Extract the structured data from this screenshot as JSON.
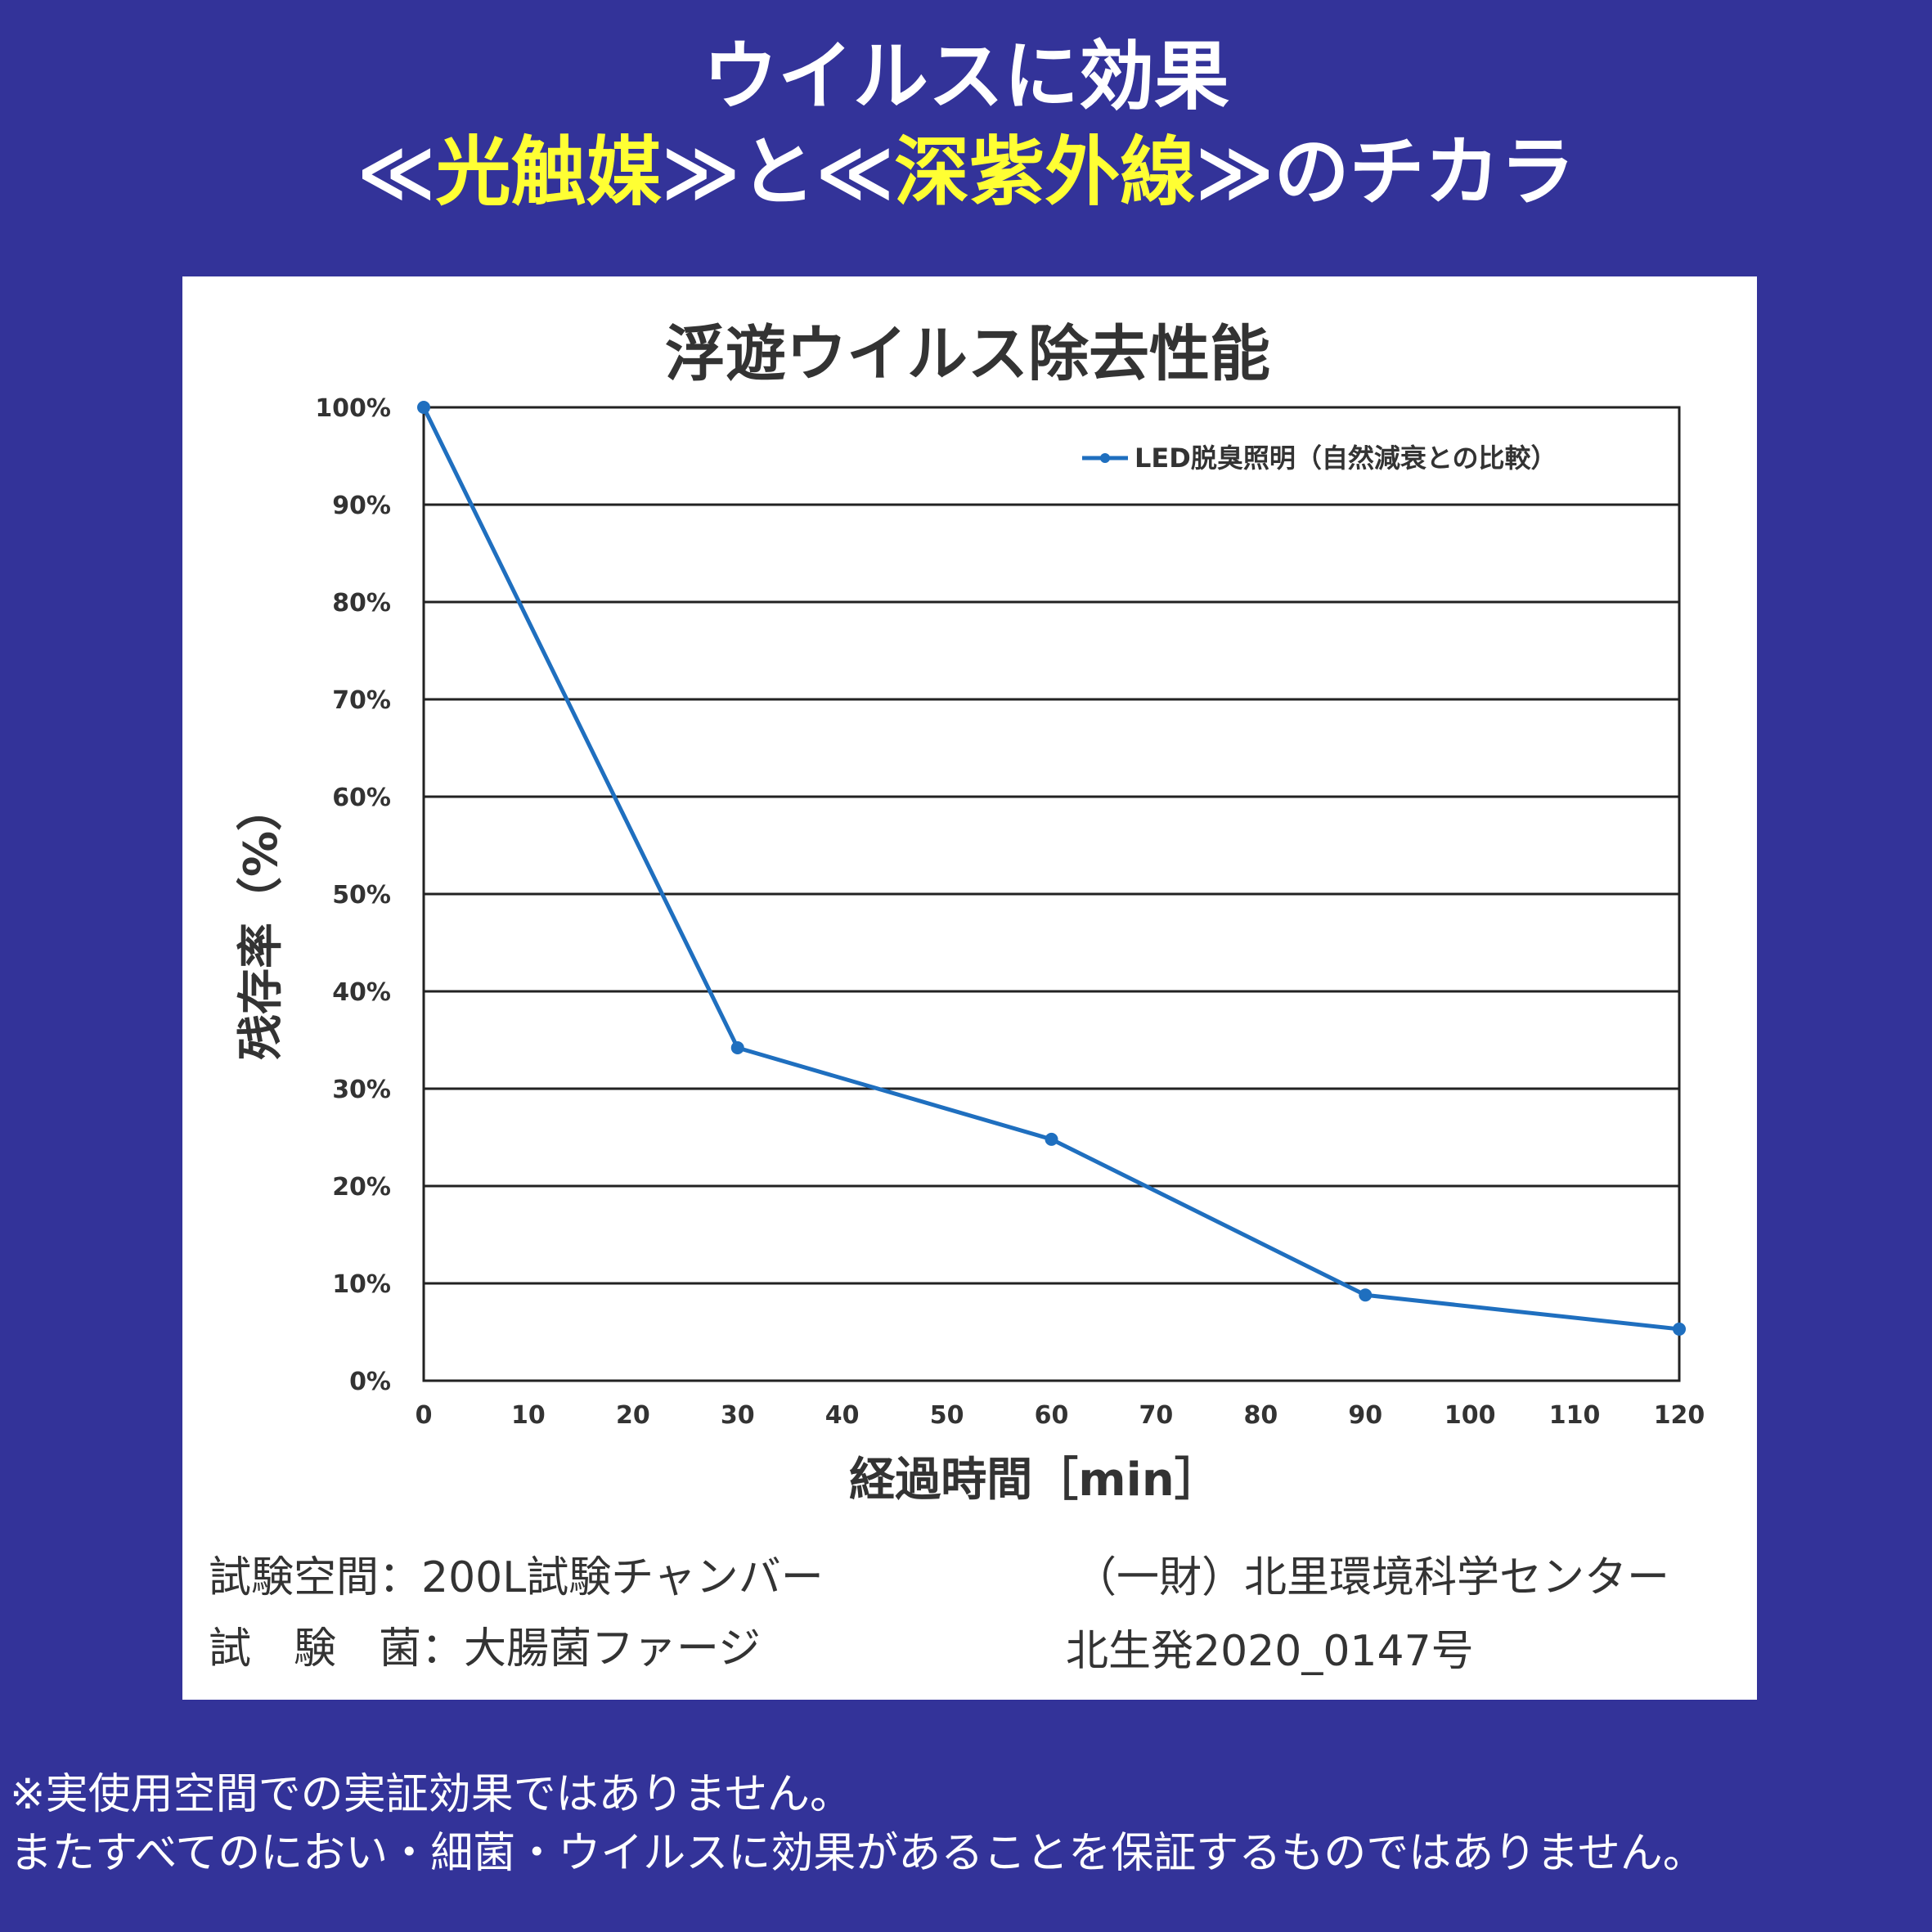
{
  "header": {
    "line1": "ウイルスに効果",
    "line2_parts": [
      "≪",
      "光触媒",
      "≫と≪",
      "深紫外線",
      "≫のチカラ"
    ]
  },
  "colors": {
    "background": "#333399",
    "highlight": "#ffff33",
    "series": "#1f6fbf"
  },
  "chart_data": {
    "type": "line",
    "title": "浮遊ウイルス除去性能",
    "xlabel": "経過時間［min］",
    "ylabel": "残存率（%）",
    "x_ticks": [
      "0",
      "10",
      "20",
      "30",
      "40",
      "50",
      "60",
      "70",
      "80",
      "90",
      "100",
      "110",
      "120"
    ],
    "y_ticks": [
      "0%",
      "10%",
      "20%",
      "30%",
      "40%",
      "50%",
      "60%",
      "70%",
      "80%",
      "90%",
      "100%"
    ],
    "xlim": [
      0,
      120
    ],
    "ylim": [
      0,
      100
    ],
    "grid": "horizontal",
    "legend_position": "top-right",
    "series": [
      {
        "name": "LED脱臭照明（自然減衰との比較）",
        "x": [
          0,
          30,
          60,
          90,
          120
        ],
        "y": [
          100,
          34.2,
          24.8,
          8.8,
          5.3
        ]
      }
    ]
  },
  "test_info": {
    "space": "試験空間：200L試験チャンバー",
    "germ": "試　験　菌：大腸菌ファージ",
    "organization": "（一財）北里環境科学センター",
    "report": "北生発2020_0147号"
  },
  "notes": [
    "※実使用空間での実証効果ではありません。",
    "またすべてのにおい・細菌・ウイルスに効果があることを保証するものではありません。"
  ]
}
